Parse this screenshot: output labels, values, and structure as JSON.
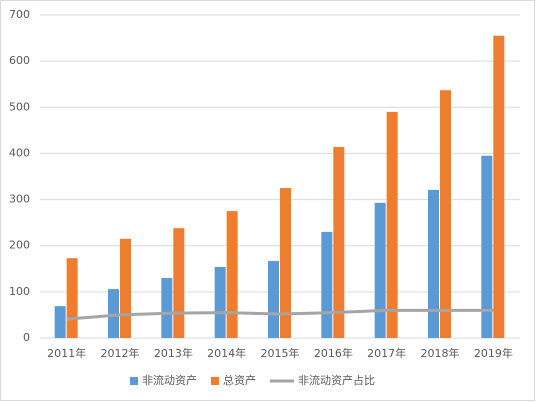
{
  "chart_data": {
    "type": "bar",
    "categories": [
      "2011年",
      "2012年",
      "2013年",
      "2014年",
      "2015年",
      "2016年",
      "2017年",
      "2018年",
      "2019年"
    ],
    "series": [
      {
        "name": "非流动资产",
        "type": "bar",
        "color": "#5b9bd5",
        "values": [
          69,
          106,
          130,
          154,
          167,
          230,
          293,
          321,
          395
        ]
      },
      {
        "name": "总资产",
        "type": "bar",
        "color": "#ed7d31",
        "values": [
          173,
          215,
          238,
          275,
          325,
          414,
          490,
          537,
          655
        ]
      },
      {
        "name": "非流动资产占比",
        "type": "line",
        "color": "#a5a5a5",
        "values": [
          41,
          50,
          54,
          55,
          52,
          55,
          60,
          60,
          60
        ]
      }
    ],
    "ylim": [
      0,
      700
    ],
    "yticks": [
      0,
      100,
      200,
      300,
      400,
      500,
      600,
      700
    ],
    "grid": true,
    "legend": "bottom"
  }
}
